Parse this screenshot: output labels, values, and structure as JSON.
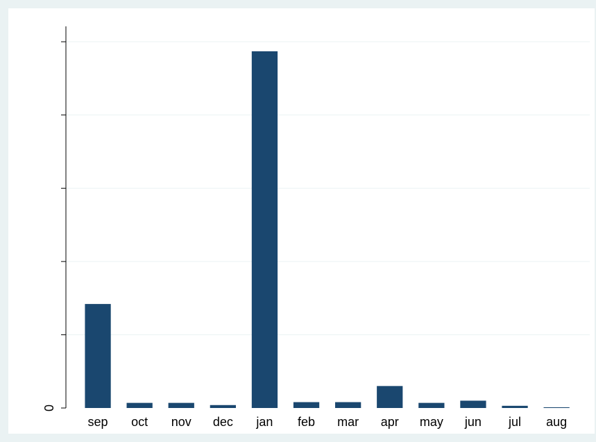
{
  "chart_data": {
    "type": "bar",
    "categories": [
      "sep",
      "oct",
      "nov",
      "dec",
      "jan",
      "feb",
      "mar",
      "apr",
      "may",
      "jun",
      "jul",
      "aug"
    ],
    "values": [
      1.42,
      0.07,
      0.07,
      0.04,
      4.87,
      0.08,
      0.08,
      0.3,
      0.07,
      0.1,
      0.03,
      0.01
    ],
    "color": "#1a476f",
    "ylim": [
      0,
      5.21
    ],
    "yticks": [
      0,
      {
        "value": 1,
        "label": null
      },
      {
        "value": 2,
        "label": null
      },
      {
        "value": 3,
        "label": null
      },
      {
        "value": 4,
        "label": null
      },
      {
        "value": 5,
        "label": null
      }
    ],
    "grid": true
  }
}
